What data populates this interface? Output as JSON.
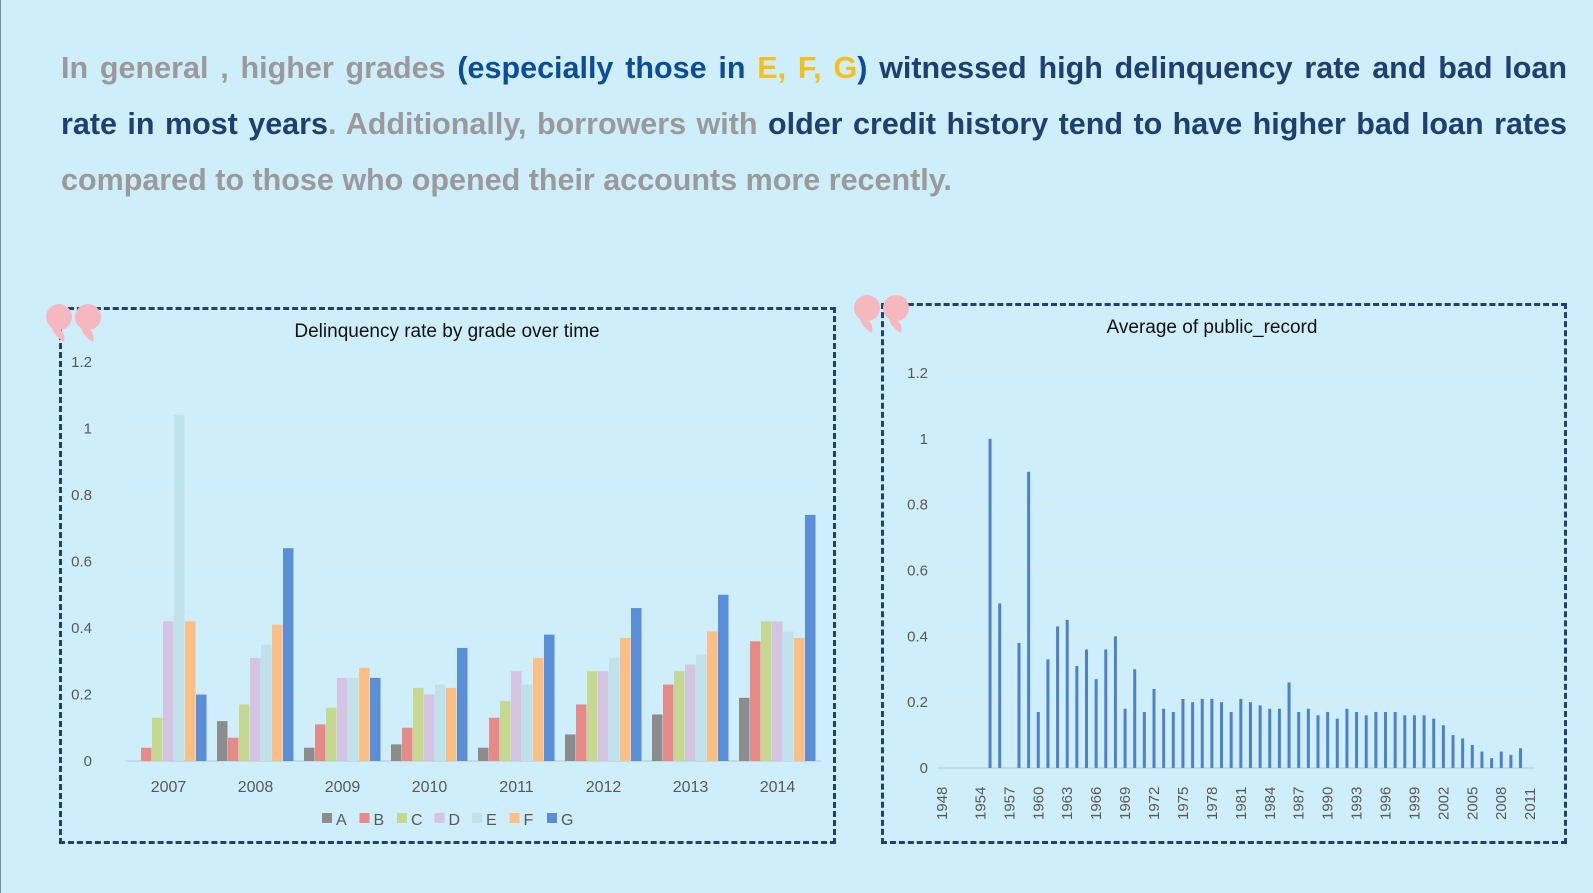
{
  "headline": {
    "segments": [
      {
        "text": "In general , higher grades ",
        "style": "grey"
      },
      {
        "text": "(especially those in ",
        "style": "blue"
      },
      {
        "text": "E, F, G",
        "style": "yellow"
      },
      {
        "text": ") ",
        "style": "blue"
      },
      {
        "text": "witnessed high  delinquency rate and bad loan rate in most years",
        "style": "navy"
      },
      {
        "text": ". Additionally, borrowers with ",
        "style": "grey"
      },
      {
        "text": "older credit history tend to have higher bad loan rates",
        "style": "navy"
      },
      {
        "text": " compared to those who opened their accounts more recently.",
        "style": "grey"
      }
    ]
  },
  "colors": {
    "background": "#cdeefa",
    "panel_border": "#1f3f78",
    "quote_marks": "#f5b8bf",
    "grade_A": "#8c8c8c",
    "grade_B": "#e58a87",
    "grade_C": "#c6d88f",
    "grade_D": "#d5c3e3",
    "grade_E": "#bfe1ea",
    "grade_F": "#fbbf86",
    "grade_G": "#5a8fd8",
    "public_record_bar": "#4f81c7"
  },
  "icons": {
    "quote_left": "double-quote-icon",
    "quote_right": "double-quote-icon"
  },
  "chart_data": [
    {
      "type": "bar",
      "title": "Delinquency rate by grade over time",
      "xlabel": "",
      "ylabel": "",
      "ylim": [
        0,
        1.2
      ],
      "yticks": [
        "0",
        "0.2",
        "0.4",
        "0.6",
        "0.8",
        "1",
        "1.2"
      ],
      "grid": true,
      "legend": "bottom",
      "categories": [
        "2007",
        "2008",
        "2009",
        "2010",
        "2011",
        "2012",
        "2013",
        "2014"
      ],
      "series": [
        {
          "name": "A",
          "values": [
            0,
            0.12,
            0.04,
            0.05,
            0.04,
            0.08,
            0.14,
            0.19
          ]
        },
        {
          "name": "B",
          "values": [
            0.04,
            0.07,
            0.11,
            0.1,
            0.13,
            0.17,
            0.23,
            0.36
          ]
        },
        {
          "name": "C",
          "values": [
            0.13,
            0.17,
            0.16,
            0.22,
            0.18,
            0.27,
            0.27,
            0.42
          ]
        },
        {
          "name": "D",
          "values": [
            0.42,
            0.31,
            0.25,
            0.2,
            0.27,
            0.27,
            0.29,
            0.42
          ]
        },
        {
          "name": "E",
          "values": [
            1.04,
            0.35,
            0.25,
            0.23,
            0.23,
            0.31,
            0.32,
            0.39
          ]
        },
        {
          "name": "F",
          "values": [
            0.42,
            0.41,
            0.28,
            0.22,
            0.31,
            0.37,
            0.39,
            0.37
          ]
        },
        {
          "name": "G",
          "values": [
            0.2,
            0.64,
            0.25,
            0.34,
            0.38,
            0.46,
            0.5,
            0.74
          ]
        }
      ]
    },
    {
      "type": "bar",
      "title": "Average of public_record",
      "xlabel": "",
      "ylabel": "",
      "ylim": [
        0,
        1.2
      ],
      "yticks": [
        "0",
        "0.2",
        "0.4",
        "0.6",
        "0.8",
        "1",
        "1.2"
      ],
      "grid": true,
      "legend": "none",
      "tick_labels": [
        "1948",
        "1954",
        "1957",
        "1960",
        "1963",
        "1966",
        "1969",
        "1972",
        "1975",
        "1978",
        "1981",
        "1984",
        "1987",
        "1990",
        "1993",
        "1996",
        "1999",
        "2002",
        "2005",
        "2008",
        "2011"
      ],
      "categories": [
        "1948",
        "1950",
        "1951",
        "1953",
        "1954",
        "1955",
        "1956",
        "1957",
        "1958",
        "1959",
        "1960",
        "1961",
        "1962",
        "1963",
        "1964",
        "1965",
        "1966",
        "1967",
        "1968",
        "1969",
        "1970",
        "1971",
        "1972",
        "1973",
        "1974",
        "1975",
        "1976",
        "1977",
        "1978",
        "1979",
        "1980",
        "1981",
        "1982",
        "1983",
        "1984",
        "1985",
        "1986",
        "1987",
        "1988",
        "1989",
        "1990",
        "1991",
        "1992",
        "1993",
        "1994",
        "1995",
        "1996",
        "1997",
        "1998",
        "1999",
        "2000",
        "2001",
        "2002",
        "2003",
        "2004",
        "2005",
        "2006",
        "2007",
        "2008",
        "2009",
        "2010",
        "2011"
      ],
      "values": [
        0,
        0,
        0,
        0,
        0,
        1.0,
        0.5,
        0,
        0.38,
        0.9,
        0.17,
        0.33,
        0.43,
        0.45,
        0.31,
        0.36,
        0.27,
        0.36,
        0.4,
        0.18,
        0.3,
        0.17,
        0.24,
        0.18,
        0.17,
        0.21,
        0.2,
        0.21,
        0.21,
        0.2,
        0.17,
        0.21,
        0.2,
        0.19,
        0.18,
        0.18,
        0.26,
        0.17,
        0.18,
        0.16,
        0.17,
        0.15,
        0.18,
        0.17,
        0.16,
        0.17,
        0.17,
        0.17,
        0.16,
        0.16,
        0.16,
        0.15,
        0.13,
        0.1,
        0.09,
        0.07,
        0.05,
        0.03,
        0.05,
        0.04,
        0.06,
        0
      ]
    }
  ]
}
